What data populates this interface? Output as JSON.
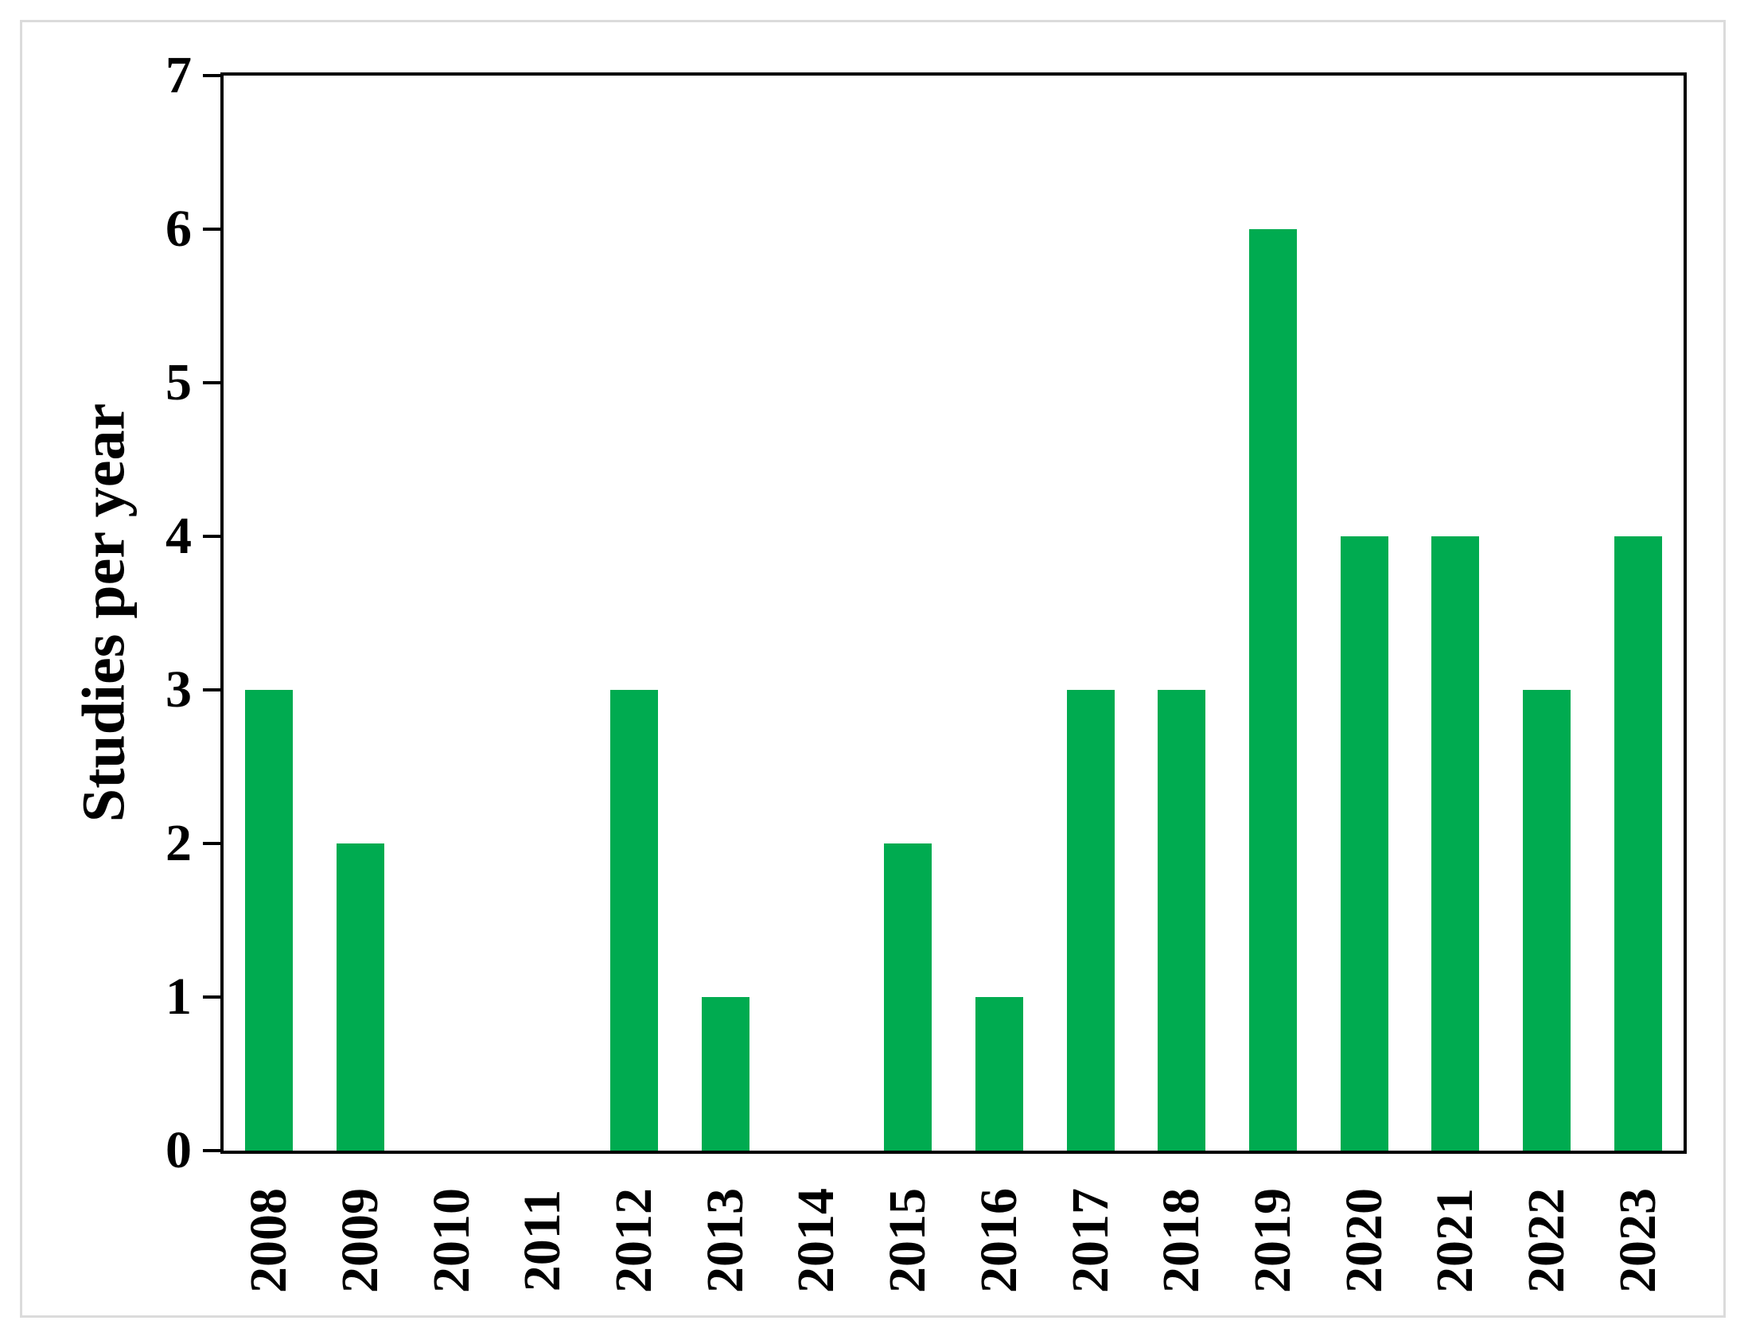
{
  "chart_data": {
    "type": "bar",
    "title": "",
    "xlabel": "",
    "ylabel": "Studies per year",
    "categories": [
      "2008",
      "2009",
      "2010",
      "2011",
      "2012",
      "2013",
      "2014",
      "2015",
      "2016",
      "2017",
      "2018",
      "2019",
      "2020",
      "2021",
      "2022",
      "2023"
    ],
    "values": [
      3,
      2,
      0,
      0,
      3,
      1,
      0,
      2,
      1,
      3,
      3,
      6,
      4,
      4,
      3,
      4
    ],
    "ylim": [
      0,
      7
    ],
    "yticks": [
      0,
      1,
      2,
      3,
      4,
      5,
      6,
      7
    ],
    "grid": false,
    "legend": null,
    "bar_color": "#00AB50",
    "axis_color": "#000000",
    "figure_border_color": "#dbdbdb"
  }
}
